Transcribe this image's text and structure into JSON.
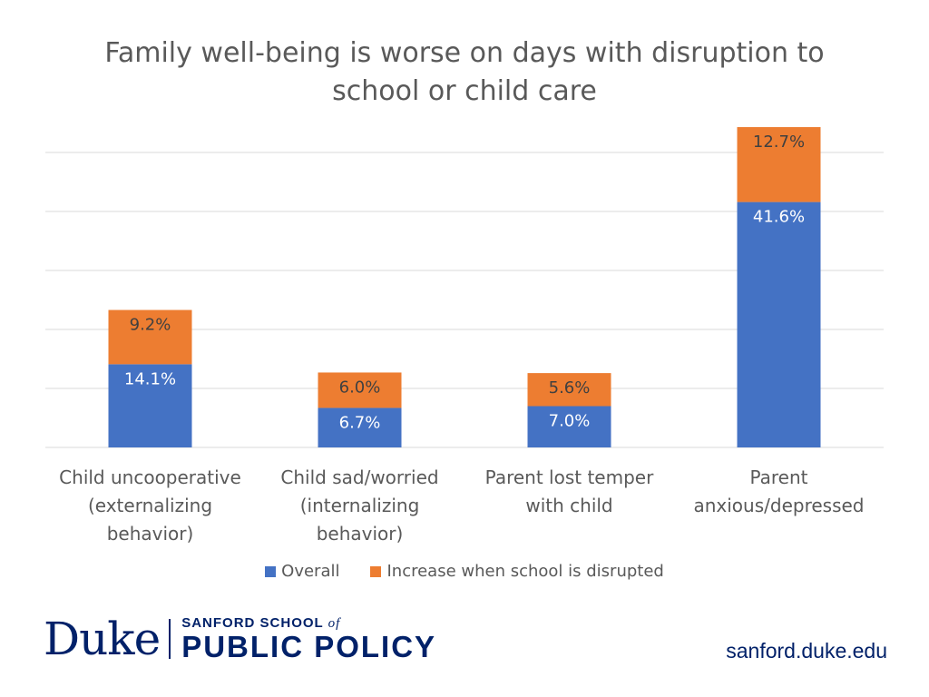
{
  "page": {
    "logo_text": "Duke | SANFORD SCHOOL of PUBLIC POLICY",
    "website": "sanford.duke.edu"
  },
  "colors": {
    "overall": "#4472C4",
    "increase": "#ED7D31",
    "grid": "#D9D9D9",
    "text": "#595959",
    "label_on_blue": "#FFFFFF",
    "label_on_orange": "#404040"
  },
  "chart_data": {
    "type": "bar",
    "stacked": true,
    "title": "Family well-being is worse on days with disruption to school or child care",
    "title_lines": [
      "Family well-being is worse on days with disruption to",
      "school or child care"
    ],
    "xlabel": "",
    "ylabel": "",
    "ylim": [
      0,
      60
    ],
    "gridlines": [
      10,
      20,
      30,
      40,
      50
    ],
    "grid": true,
    "legend_position": "bottom",
    "categories": [
      [
        "Child uncooperative",
        "(externalizing",
        "behavior)"
      ],
      [
        "Child sad/worried",
        "(internalizing",
        "behavior)"
      ],
      [
        "Parent lost temper",
        "with child"
      ],
      [
        "Parent",
        "anxious/depressed"
      ]
    ],
    "series": [
      {
        "name": "Overall",
        "values": [
          14.1,
          6.7,
          7.0,
          41.6
        ],
        "labels": [
          "14.1%",
          "6.7%",
          "7.0%",
          "41.6%"
        ]
      },
      {
        "name": "Increase when school is disrupted",
        "values": [
          9.2,
          6.0,
          5.6,
          12.7
        ],
        "labels": [
          "9.2%",
          "6.0%",
          "5.6%",
          "12.7%"
        ]
      }
    ]
  }
}
